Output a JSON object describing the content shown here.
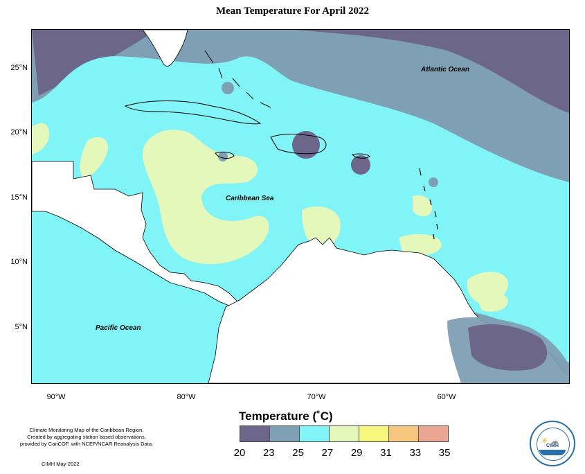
{
  "title": "Mean Temperature For April 2022",
  "map": {
    "latitude_labels": [
      "25°N",
      "20°N",
      "15°N",
      "10°N",
      "5°N"
    ],
    "longitude_labels": [
      "90°W",
      "80°W",
      "70°W",
      "60°W"
    ],
    "ocean_labels": {
      "atlantic": "Atlantic Ocean",
      "caribbean": "Caribbean Sea",
      "pacific": "Pacific Ocean"
    }
  },
  "legend": {
    "title": "Temperature (˚C)",
    "ticks": [
      "20",
      "23",
      "25",
      "27",
      "29",
      "31",
      "33",
      "35"
    ],
    "colors": [
      "#6b668a",
      "#7f9fb4",
      "#80f4f6",
      "#e3f8ba",
      "#f7f67e",
      "#f6c57e",
      "#eaa692"
    ]
  },
  "colors": {
    "band_20_23": "#6b668a",
    "band_23_25": "#7f9fb4",
    "band_25_27": "#80f4f6",
    "band_27_29": "#e3f8ba",
    "land": "#ffffff",
    "coast": "#000000"
  },
  "footer": {
    "note_line1": "Climate Monitoring Map of the Caribbean Region.",
    "note_line2": "Created by aggregating station based observations,",
    "note_line3": "provided by CariCOF, with NCEP/NCAR Reanalysis Data.",
    "credit": "CIMH May-2022"
  },
  "logo": {
    "text": "CIMH"
  }
}
